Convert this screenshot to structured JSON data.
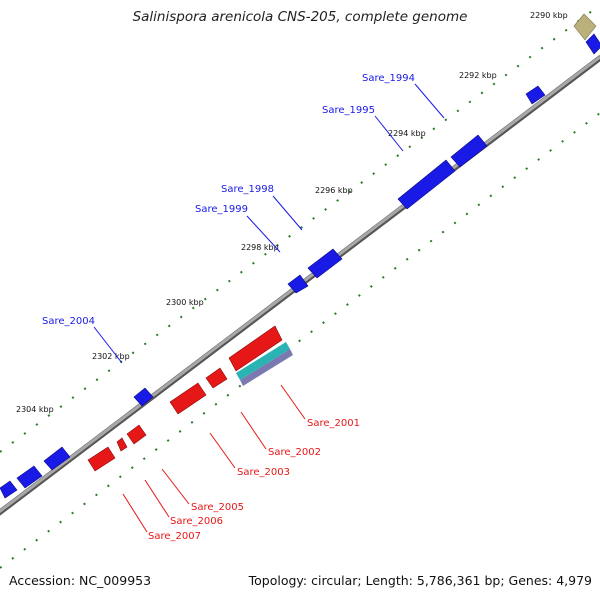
{
  "title": "Salinispora arenicola CNS-205, complete genome",
  "accession": "Accession: NC_009953",
  "summary": "Topology: circular; Length: 5,786,361 bp; Genes: 4,979",
  "colors": {
    "forward_gene": "#1a1ae6",
    "reverse_gene": "#e61717",
    "rna_gene": "#2ab3b3",
    "other_feature": "#b9b07c",
    "backbone": "#8a8a8a",
    "tick_mark": "#2a7a2a"
  },
  "ticks": [
    "2290 kbp",
    "2292 kbp",
    "2294 kbp",
    "2296 kbp",
    "2298 kbp",
    "2300 kbp",
    "2302 kbp",
    "2304 kbp"
  ],
  "forward_labels": [
    "Sare_1994",
    "Sare_1995",
    "Sare_1998",
    "Sare_1999",
    "Sare_2004"
  ],
  "reverse_labels": [
    "Sare_2001",
    "Sare_2002",
    "Sare_2003",
    "Sare_2005",
    "Sare_2006",
    "Sare_2007"
  ]
}
